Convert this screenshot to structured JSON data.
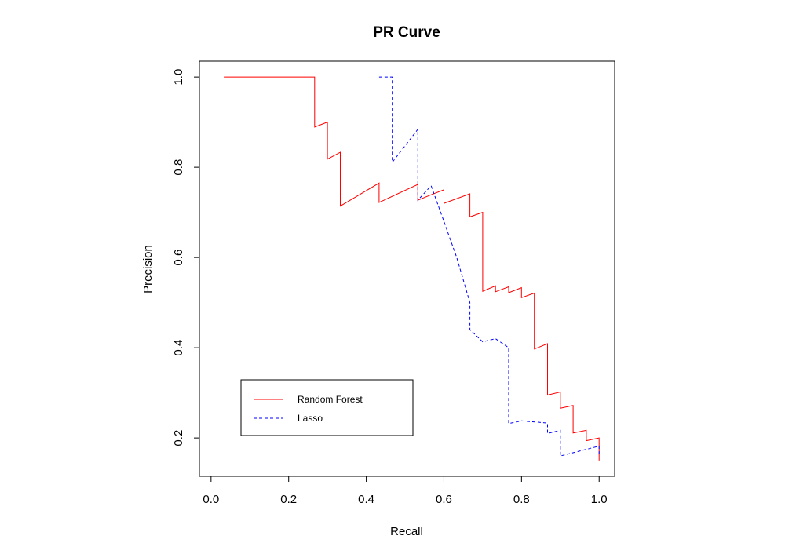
{
  "chart_data": {
    "type": "line",
    "title": "PR Curve",
    "xlabel": "Recall",
    "ylabel": "Precision",
    "xlim": [
      -0.03,
      1.04
    ],
    "ylim": [
      0.115,
      1.035
    ],
    "x_ticks": [
      "0.0",
      "0.2",
      "0.4",
      "0.6",
      "0.8",
      "1.0"
    ],
    "x_tick_values": [
      0.0,
      0.2,
      0.4,
      0.6,
      0.8,
      1.0
    ],
    "y_ticks": [
      "0.2",
      "0.4",
      "0.6",
      "0.8",
      "1.0"
    ],
    "y_tick_values": [
      0.2,
      0.4,
      0.6,
      0.8,
      1.0
    ],
    "grid": false,
    "legend_position": "bottom-left",
    "series": [
      {
        "name": "Random Forest",
        "color": "#ff0000",
        "dash": "solid",
        "points": [
          [
            0.033,
            1.0
          ],
          [
            0.267,
            1.0
          ],
          [
            0.267,
            0.889
          ],
          [
            0.3,
            0.9
          ],
          [
            0.3,
            0.818
          ],
          [
            0.333,
            0.833
          ],
          [
            0.333,
            0.714
          ],
          [
            0.433,
            0.765
          ],
          [
            0.433,
            0.722
          ],
          [
            0.533,
            0.762
          ],
          [
            0.533,
            0.727
          ],
          [
            0.567,
            0.739
          ],
          [
            0.567,
            0.739
          ],
          [
            0.6,
            0.75
          ],
          [
            0.6,
            0.72
          ],
          [
            0.667,
            0.741
          ],
          [
            0.667,
            0.69
          ],
          [
            0.7,
            0.7
          ],
          [
            0.7,
            0.525
          ],
          [
            0.733,
            0.537
          ],
          [
            0.733,
            0.524
          ],
          [
            0.767,
            0.535
          ],
          [
            0.767,
            0.522
          ],
          [
            0.8,
            0.533
          ],
          [
            0.8,
            0.511
          ],
          [
            0.833,
            0.521
          ],
          [
            0.833,
            0.397
          ],
          [
            0.867,
            0.409
          ],
          [
            0.867,
            0.295
          ],
          [
            0.9,
            0.302
          ],
          [
            0.9,
            0.266
          ],
          [
            0.933,
            0.272
          ],
          [
            0.933,
            0.211
          ],
          [
            0.967,
            0.217
          ],
          [
            0.967,
            0.194
          ],
          [
            1.0,
            0.2
          ],
          [
            1.0,
            0.15
          ]
        ]
      },
      {
        "name": "Lasso",
        "color": "#0000ff",
        "dash": "dashed",
        "points": [
          [
            0.433,
            1.0
          ],
          [
            0.467,
            1.0
          ],
          [
            0.467,
            0.811
          ],
          [
            0.533,
            0.884
          ],
          [
            0.533,
            0.727
          ],
          [
            0.567,
            0.759
          ],
          [
            0.6,
            0.68
          ],
          [
            0.633,
            0.6
          ],
          [
            0.667,
            0.5
          ],
          [
            0.667,
            0.44
          ],
          [
            0.7,
            0.413
          ],
          [
            0.733,
            0.42
          ],
          [
            0.767,
            0.4
          ],
          [
            0.767,
            0.232
          ],
          [
            0.8,
            0.238
          ],
          [
            0.867,
            0.233
          ],
          [
            0.867,
            0.21
          ],
          [
            0.9,
            0.217
          ],
          [
            0.9,
            0.16
          ],
          [
            1.0,
            0.182
          ],
          [
            1.0,
            0.165
          ]
        ]
      }
    ]
  }
}
